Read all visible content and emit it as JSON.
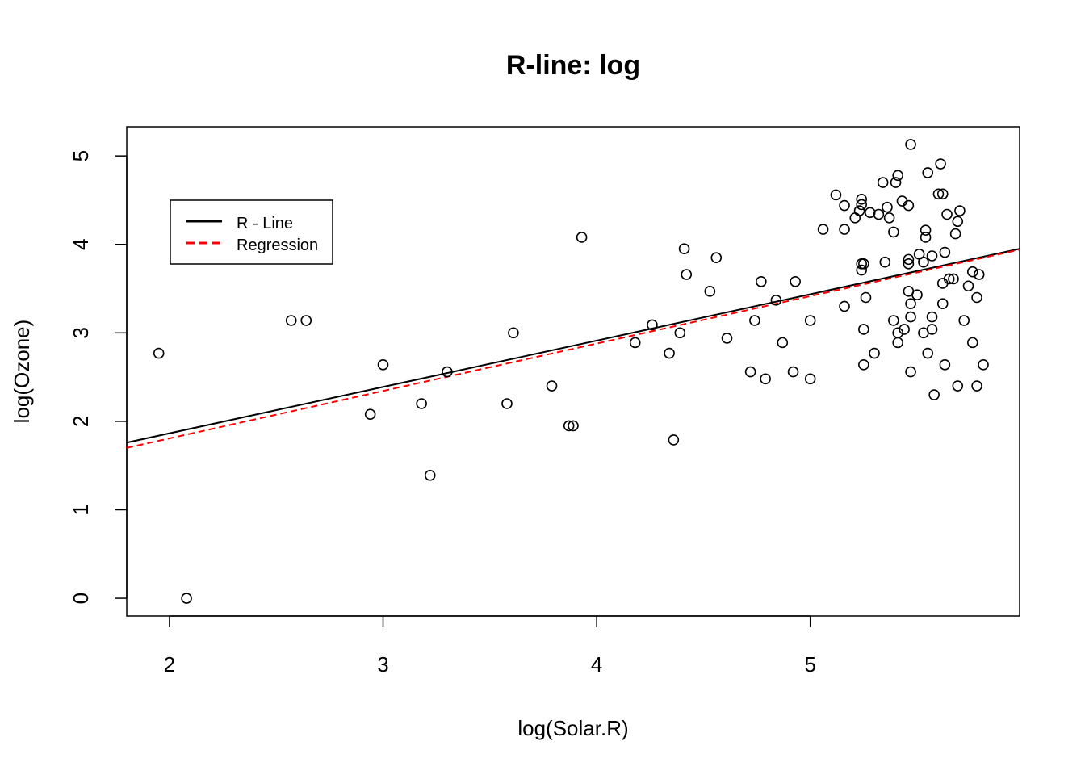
{
  "chart_data": {
    "type": "scatter",
    "title": "R-line: log",
    "xlabel": "log(Solar.R)",
    "ylabel": "log(Ozone)",
    "xlim": [
      1.8,
      5.98
    ],
    "ylim": [
      -0.2,
      5.33
    ],
    "x_ticks": [
      "2",
      "3",
      "4",
      "5"
    ],
    "y_ticks": [
      "0",
      "1",
      "2",
      "3",
      "4",
      "5"
    ],
    "legend": {
      "position": "top-left",
      "entries": [
        {
          "label": "R - Line",
          "color": "#000000",
          "style": "solid"
        },
        {
          "label": "Regression",
          "color": "#ff0000",
          "style": "dashed"
        }
      ]
    },
    "lines": [
      {
        "name": "R - Line",
        "color": "#000000",
        "style": "solid",
        "x": [
          1.8,
          5.98
        ],
        "y": [
          1.76,
          3.95
        ]
      },
      {
        "name": "Regression",
        "color": "#ff0000",
        "style": "dashed",
        "x": [
          1.8,
          5.98
        ],
        "y": [
          1.7,
          3.94
        ]
      }
    ],
    "points": [
      [
        1.95,
        2.77
      ],
      [
        2.08,
        0.0
      ],
      [
        2.57,
        3.14
      ],
      [
        2.64,
        3.14
      ],
      [
        2.94,
        2.08
      ],
      [
        3.0,
        2.64
      ],
      [
        3.18,
        2.2
      ],
      [
        3.22,
        1.39
      ],
      [
        3.3,
        2.56
      ],
      [
        3.58,
        2.2
      ],
      [
        3.61,
        3.0
      ],
      [
        3.79,
        2.4
      ],
      [
        3.87,
        1.95
      ],
      [
        3.89,
        1.95
      ],
      [
        3.93,
        4.08
      ],
      [
        4.18,
        2.89
      ],
      [
        4.26,
        3.09
      ],
      [
        4.34,
        2.77
      ],
      [
        4.36,
        1.79
      ],
      [
        4.39,
        3.0
      ],
      [
        4.41,
        3.95
      ],
      [
        4.42,
        3.66
      ],
      [
        4.53,
        3.47
      ],
      [
        4.56,
        3.85
      ],
      [
        4.61,
        2.94
      ],
      [
        4.72,
        2.56
      ],
      [
        4.74,
        3.14
      ],
      [
        4.77,
        3.58
      ],
      [
        4.79,
        2.48
      ],
      [
        4.84,
        3.37
      ],
      [
        4.87,
        2.89
      ],
      [
        4.92,
        2.56
      ],
      [
        4.93,
        3.58
      ],
      [
        5.0,
        3.14
      ],
      [
        5.0,
        2.48
      ],
      [
        5.06,
        4.17
      ],
      [
        5.12,
        4.56
      ],
      [
        5.16,
        4.44
      ],
      [
        5.16,
        4.17
      ],
      [
        5.16,
        3.3
      ],
      [
        5.21,
        4.3
      ],
      [
        5.23,
        4.38
      ],
      [
        5.24,
        4.45
      ],
      [
        5.24,
        4.51
      ],
      [
        5.24,
        3.78
      ],
      [
        5.24,
        3.71
      ],
      [
        5.25,
        3.78
      ],
      [
        5.25,
        3.04
      ],
      [
        5.25,
        2.64
      ],
      [
        5.26,
        3.4
      ],
      [
        5.28,
        4.36
      ],
      [
        5.3,
        2.77
      ],
      [
        5.32,
        4.34
      ],
      [
        5.34,
        4.7
      ],
      [
        5.35,
        3.8
      ],
      [
        5.36,
        4.42
      ],
      [
        5.37,
        4.3
      ],
      [
        5.39,
        4.14
      ],
      [
        5.39,
        3.14
      ],
      [
        5.4,
        4.7
      ],
      [
        5.41,
        4.78
      ],
      [
        5.41,
        3.0
      ],
      [
        5.41,
        2.89
      ],
      [
        5.43,
        4.49
      ],
      [
        5.44,
        3.04
      ],
      [
        5.46,
        4.44
      ],
      [
        5.46,
        3.83
      ],
      [
        5.46,
        3.78
      ],
      [
        5.46,
        3.47
      ],
      [
        5.47,
        5.13
      ],
      [
        5.47,
        3.33
      ],
      [
        5.47,
        3.18
      ],
      [
        5.47,
        2.56
      ],
      [
        5.5,
        3.43
      ],
      [
        5.51,
        3.89
      ],
      [
        5.53,
        3.8
      ],
      [
        5.53,
        3.0
      ],
      [
        5.54,
        4.16
      ],
      [
        5.54,
        4.08
      ],
      [
        5.55,
        4.81
      ],
      [
        5.55,
        2.77
      ],
      [
        5.57,
        3.87
      ],
      [
        5.57,
        3.18
      ],
      [
        5.57,
        3.04
      ],
      [
        5.58,
        2.3
      ],
      [
        5.6,
        4.57
      ],
      [
        5.61,
        4.91
      ],
      [
        5.62,
        4.57
      ],
      [
        5.62,
        3.56
      ],
      [
        5.62,
        3.33
      ],
      [
        5.63,
        3.91
      ],
      [
        5.63,
        2.64
      ],
      [
        5.64,
        4.34
      ],
      [
        5.65,
        3.61
      ],
      [
        5.67,
        3.61
      ],
      [
        5.68,
        4.12
      ],
      [
        5.69,
        4.26
      ],
      [
        5.69,
        2.4
      ],
      [
        5.7,
        4.38
      ],
      [
        5.72,
        3.14
      ],
      [
        5.74,
        3.53
      ],
      [
        5.76,
        3.69
      ],
      [
        5.76,
        2.89
      ],
      [
        5.78,
        3.4
      ],
      [
        5.78,
        2.4
      ],
      [
        5.79,
        3.66
      ],
      [
        5.81,
        2.64
      ]
    ]
  }
}
